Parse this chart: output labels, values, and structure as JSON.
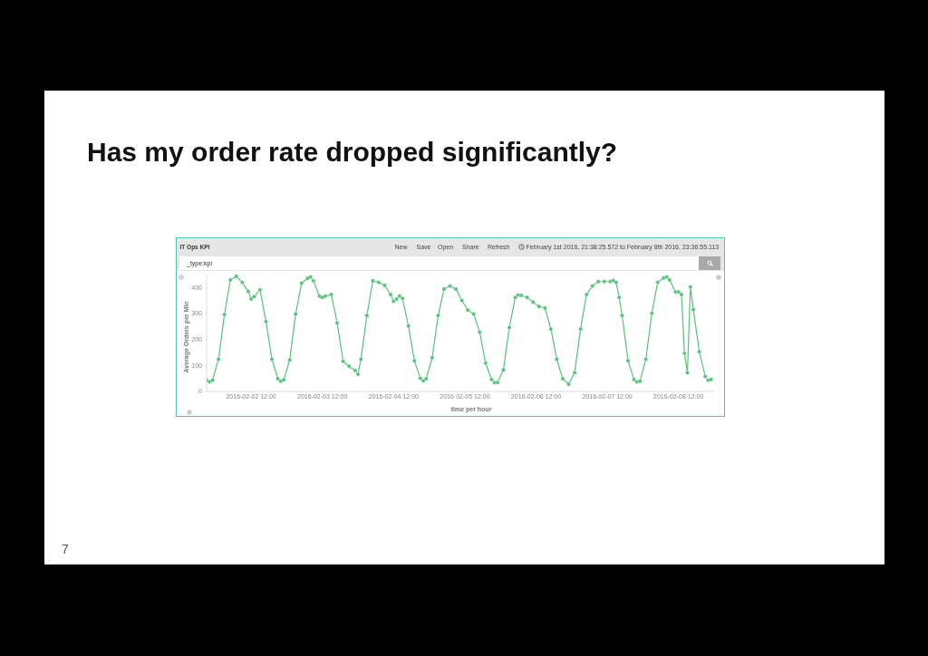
{
  "chart_data": {
    "type": "line",
    "title": "Has my order rate dropped significantly?",
    "subtitle": "IT Ops KPI",
    "xlabel": "time per hour",
    "ylabel": "Average Orders per Min",
    "annotations": [
      "New",
      "Save",
      "Open",
      "Share",
      "Refresh",
      "February 1st 2016, 21:38:25.572 to February 8th 2016, 23:36:55.113",
      "_type:kpi",
      "7"
    ],
    "x": [
      "2016-02-01T21:00",
      "2016-02-01T22:00",
      "2016-02-01T23:00",
      "2016-02-02T01:00",
      "2016-02-02T03:00",
      "2016-02-02T05:00",
      "2016-02-02T07:00",
      "2016-02-02T09:00",
      "2016-02-02T11:00",
      "2016-02-02T12:00",
      "2016-02-02T13:00",
      "2016-02-02T15:00",
      "2016-02-02T17:00",
      "2016-02-02T19:00",
      "2016-02-02T21:00",
      "2016-02-02T22:00",
      "2016-02-02T23:00",
      "2016-02-03T01:00",
      "2016-02-03T03:00",
      "2016-02-03T05:00",
      "2016-02-03T07:00",
      "2016-02-03T08:00",
      "2016-02-03T09:00",
      "2016-02-03T11:00",
      "2016-02-03T12:00",
      "2016-02-03T13:00",
      "2016-02-03T15:00",
      "2016-02-03T17:00",
      "2016-02-03T19:00",
      "2016-02-03T21:00",
      "2016-02-03T23:00",
      "2016-02-04T00:00",
      "2016-02-04T01:00",
      "2016-02-04T03:00",
      "2016-02-04T05:00",
      "2016-02-04T07:00",
      "2016-02-04T09:00",
      "2016-02-04T11:00",
      "2016-02-04T12:00",
      "2016-02-04T13:00",
      "2016-02-04T14:00",
      "2016-02-04T15:00",
      "2016-02-04T17:00",
      "2016-02-04T19:00",
      "2016-02-04T21:00",
      "2016-02-04T22:00",
      "2016-02-04T23:00",
      "2016-02-05T01:00",
      "2016-02-05T03:00",
      "2016-02-05T05:00",
      "2016-02-05T07:00",
      "2016-02-05T09:00",
      "2016-02-05T11:00",
      "2016-02-05T13:00",
      "2016-02-05T15:00",
      "2016-02-05T17:00",
      "2016-02-05T19:00",
      "2016-02-05T21:00",
      "2016-02-05T22:00",
      "2016-02-05T23:00",
      "2016-02-06T01:00",
      "2016-02-06T03:00",
      "2016-02-06T05:00",
      "2016-02-06T06:00",
      "2016-02-06T07:00",
      "2016-02-06T09:00",
      "2016-02-06T11:00",
      "2016-02-06T13:00",
      "2016-02-06T15:00",
      "2016-02-06T17:00",
      "2016-02-06T19:00",
      "2016-02-06T21:00",
      "2016-02-06T23:00",
      "2016-02-07T01:00",
      "2016-02-07T03:00",
      "2016-02-07T05:00",
      "2016-02-07T07:00",
      "2016-02-07T09:00",
      "2016-02-07T11:00",
      "2016-02-07T13:00",
      "2016-02-07T14:00",
      "2016-02-07T15:00",
      "2016-02-07T16:00",
      "2016-02-07T17:00",
      "2016-02-07T19:00",
      "2016-02-07T21:00",
      "2016-02-07T22:00",
      "2016-02-07T23:00",
      "2016-02-08T01:00",
      "2016-02-08T03:00",
      "2016-02-08T05:00",
      "2016-02-08T07:00",
      "2016-02-08T08:00",
      "2016-02-08T09:00",
      "2016-02-08T11:00",
      "2016-02-08T12:00",
      "2016-02-08T13:00",
      "2016-02-08T14:00",
      "2016-02-08T15:00",
      "2016-02-08T16:00",
      "2016-02-08T17:00",
      "2016-02-08T19:00",
      "2016-02-08T21:00",
      "2016-02-08T22:00",
      "2016-02-08T23:00"
    ],
    "values": [
      43,
      37,
      43,
      124,
      296,
      429,
      443,
      420,
      385,
      356,
      365,
      391,
      269,
      124,
      49,
      39,
      45,
      121,
      298,
      417,
      435,
      441,
      426,
      367,
      362,
      367,
      373,
      263,
      116,
      97,
      81,
      66,
      124,
      292,
      426,
      420,
      408,
      373,
      347,
      356,
      367,
      358,
      252,
      118,
      51,
      41,
      49,
      130,
      292,
      394,
      406,
      394,
      350,
      313,
      298,
      228,
      109,
      46,
      34,
      34,
      83,
      246,
      362,
      371,
      370,
      362,
      344,
      327,
      321,
      240,
      124,
      49,
      28,
      72,
      240,
      373,
      406,
      423,
      423,
      423,
      427,
      420,
      362,
      292,
      118,
      46,
      37,
      39,
      124,
      301,
      420,
      437,
      441,
      429,
      383,
      383,
      373,
      147,
      72,
      402,
      315,
      153,
      58,
      43,
      46
    ],
    "color": "#57c17b",
    "marker": "circle",
    "xlim": [
      "2016-02-01T21:00",
      "2016-02-09T00:00"
    ],
    "xticks": [
      {
        "value": "2016-02-02T12:00",
        "label": "2016-02-02 12:00"
      },
      {
        "value": "2016-02-03T12:00",
        "label": "2016-02-03 12:00"
      },
      {
        "value": "2016-02-04T12:00",
        "label": "2016-02-04 12:00"
      },
      {
        "value": "2016-02-05T12:00",
        "label": "2016-02-05 12:00"
      },
      {
        "value": "2016-02-06T12:00",
        "label": "2016-02-06 12:00"
      },
      {
        "value": "2016-02-07T12:00",
        "label": "2016-02-07 12:00"
      },
      {
        "value": "2016-02-08T12:00",
        "label": "2016-02-08 12:00"
      }
    ],
    "ylim": [
      0,
      450
    ],
    "yticks": [
      0,
      100,
      200,
      300,
      400
    ]
  }
}
